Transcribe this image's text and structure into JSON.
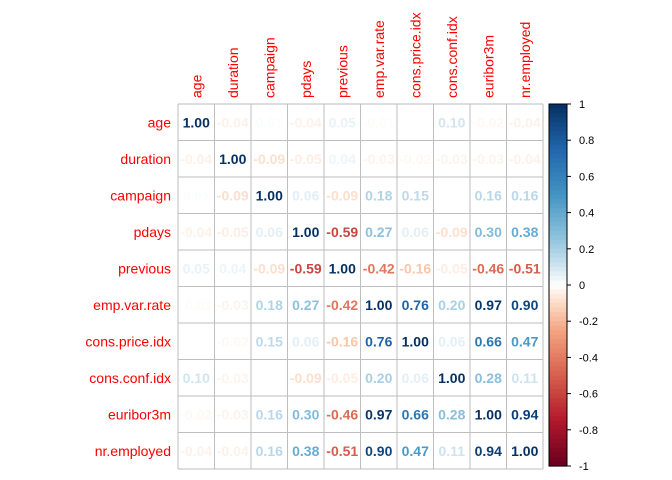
{
  "chart_data": {
    "type": "heatmap",
    "title": "",
    "labels": [
      "age",
      "duration",
      "campaign",
      "pdays",
      "previous",
      "emp.var.rate",
      "cons.price.idx",
      "cons.conf.idx",
      "euribor3m",
      "nr.employed"
    ],
    "matrix": [
      [
        1.0,
        -0.04,
        0.01,
        -0.04,
        0.05,
        -0.01,
        0.0,
        0.1,
        -0.02,
        -0.04
      ],
      [
        -0.04,
        1.0,
        -0.09,
        -0.05,
        0.04,
        -0.03,
        -0.02,
        -0.03,
        -0.03,
        -0.04
      ],
      [
        0.01,
        -0.09,
        1.0,
        0.06,
        -0.09,
        0.18,
        0.15,
        0.0,
        0.16,
        0.16
      ],
      [
        -0.04,
        -0.05,
        0.06,
        1.0,
        -0.59,
        0.27,
        0.06,
        -0.09,
        0.3,
        0.38
      ],
      [
        0.05,
        0.04,
        -0.09,
        -0.59,
        1.0,
        -0.42,
        -0.16,
        -0.05,
        -0.46,
        -0.51
      ],
      [
        -0.01,
        -0.03,
        0.18,
        0.27,
        -0.42,
        1.0,
        0.76,
        0.2,
        0.97,
        0.9
      ],
      [
        0.0,
        -0.02,
        0.15,
        0.06,
        -0.16,
        0.76,
        1.0,
        0.06,
        0.66,
        0.47
      ],
      [
        0.1,
        -0.03,
        0.0,
        -0.09,
        -0.05,
        0.2,
        0.06,
        1.0,
        0.28,
        0.11
      ],
      [
        -0.02,
        -0.03,
        0.16,
        0.3,
        -0.46,
        0.97,
        0.66,
        0.28,
        1.0,
        0.94
      ],
      [
        -0.04,
        -0.04,
        0.16,
        0.38,
        -0.51,
        0.9,
        0.47,
        0.11,
        0.94,
        1.0
      ]
    ],
    "colorbar": {
      "range": [
        -1,
        1
      ],
      "ticks": [
        "1",
        "0.8",
        "0.6",
        "0.4",
        "0.2",
        "0",
        "-0.2",
        "-0.4",
        "-0.6",
        "-0.8",
        "-1"
      ]
    },
    "colors": {
      "label": "#ff0000",
      "grid": "#bebebe",
      "negative_end": "#67001f",
      "neutral": "#ffffff",
      "positive_end": "#053061"
    }
  }
}
